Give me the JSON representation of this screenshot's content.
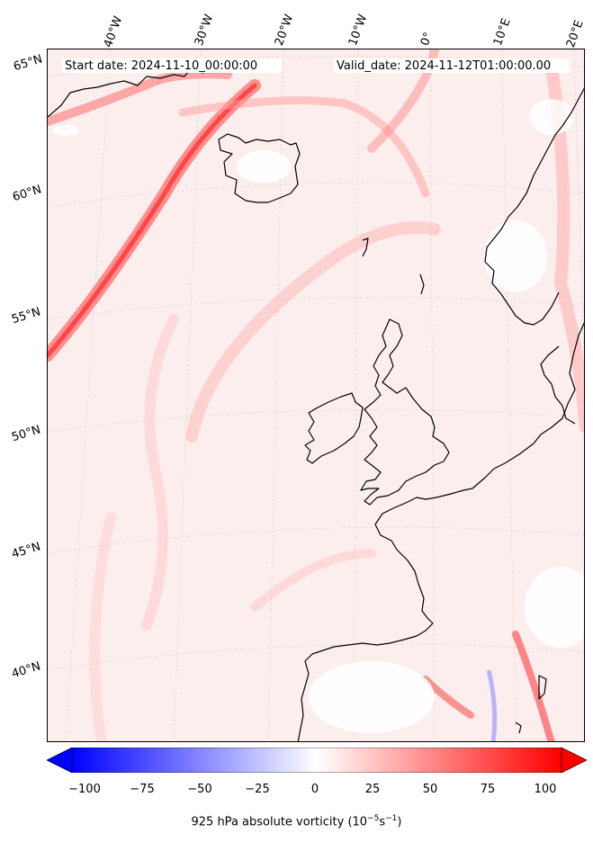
{
  "header": {
    "start_date": "Start date: 2024-11-10_00:00:00",
    "valid_date": "Valid_date: 2024-11-12T01:00:00.00"
  },
  "longitude_labels": [
    "40°W",
    "30°W",
    "20°W",
    "10°W",
    "0°",
    "10°E",
    "20°E"
  ],
  "latitude_labels": [
    "65°N",
    "60°N",
    "55°N",
    "50°N",
    "45°N",
    "40°N"
  ],
  "colorbar": {
    "ticks": [
      "−100",
      "−75",
      "−50",
      "−25",
      "0",
      "25",
      "50",
      "75",
      "100"
    ],
    "min": -100,
    "max": 100,
    "colors": {
      "low": "#0000ff",
      "mid": "#ffffff",
      "high": "#ff0000"
    },
    "label": "925 hPa absolute vorticity (10",
    "label_exp1": "−5",
    "label_mid": "s",
    "label_exp2": "−1",
    "label_end": ")"
  }
}
